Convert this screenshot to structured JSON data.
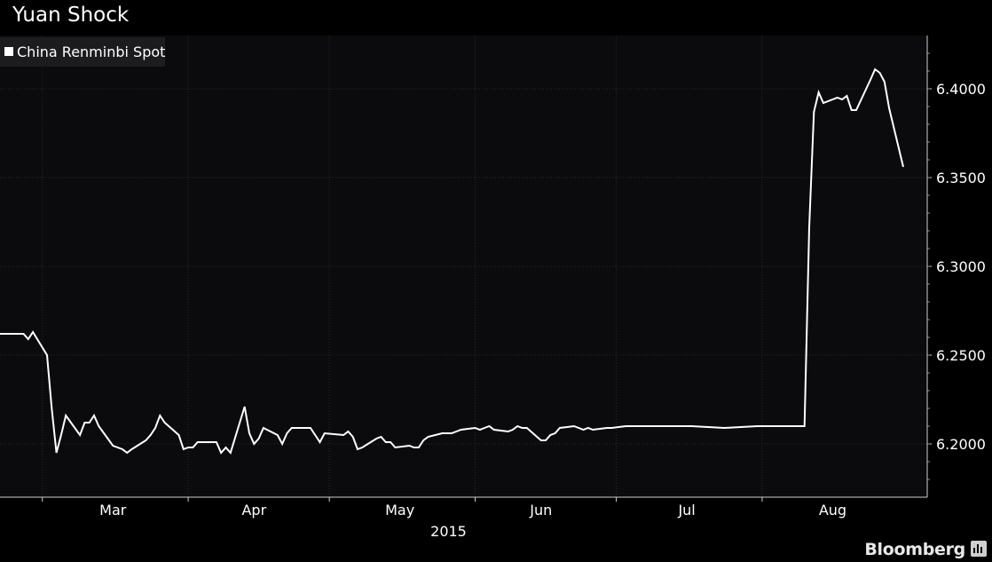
{
  "header": {
    "title": "Yuan Shock"
  },
  "branding": {
    "name": "Bloomberg",
    "icon": "bloomberg-bar-chart-icon"
  },
  "colors": {
    "background": "#000000",
    "plot_area": "#0b0b0d",
    "series": "#ffffff",
    "grid": "#2a2a2e"
  },
  "chart_data": {
    "type": "line",
    "title": "Yuan Shock",
    "xlabel": "2015",
    "ylabel": "",
    "legend": {
      "placement": "top-left",
      "entries": [
        "China Renminbi Spot"
      ]
    },
    "grid": true,
    "y_axis_side": "right",
    "x_range": [
      "2015-02-20",
      "2015-08-31"
    ],
    "ylim": [
      6.17,
      6.43
    ],
    "y_ticks": [
      "6.2000",
      "6.2500",
      "6.3000",
      "6.3500",
      "6.4000"
    ],
    "x_ticks": [
      {
        "label": "Mar",
        "date": "2015-03-01"
      },
      {
        "label": "Apr",
        "date": "2015-04-01"
      },
      {
        "label": "May",
        "date": "2015-05-01"
      },
      {
        "label": "Jun",
        "date": "2015-06-01"
      },
      {
        "label": "Jul",
        "date": "2015-07-01"
      },
      {
        "label": "Aug",
        "date": "2015-08-01"
      }
    ],
    "series": [
      {
        "name": "China Renminbi Spot",
        "points": [
          [
            "2015-02-20",
            6.262
          ],
          [
            "2015-02-23",
            6.262
          ],
          [
            "2015-02-24",
            6.262
          ],
          [
            "2015-02-25",
            6.262
          ],
          [
            "2015-02-26",
            6.259
          ],
          [
            "2015-02-27",
            6.263
          ],
          [
            "2015-03-02",
            6.25
          ],
          [
            "2015-03-03",
            6.22
          ],
          [
            "2015-03-04",
            6.195
          ],
          [
            "2015-03-05",
            6.205
          ],
          [
            "2015-03-06",
            6.216
          ],
          [
            "2015-03-09",
            6.205
          ],
          [
            "2015-03-10",
            6.212
          ],
          [
            "2015-03-11",
            6.212
          ],
          [
            "2015-03-12",
            6.216
          ],
          [
            "2015-03-13",
            6.21
          ],
          [
            "2015-03-16",
            6.199
          ],
          [
            "2015-03-17",
            6.198
          ],
          [
            "2015-03-18",
            6.197
          ],
          [
            "2015-03-19",
            6.195
          ],
          [
            "2015-03-20",
            6.197
          ],
          [
            "2015-03-23",
            6.202
          ],
          [
            "2015-03-24",
            6.205
          ],
          [
            "2015-03-25",
            6.209
          ],
          [
            "2015-03-26",
            6.216
          ],
          [
            "2015-03-27",
            6.212
          ],
          [
            "2015-03-30",
            6.205
          ],
          [
            "2015-03-31",
            6.197
          ],
          [
            "2015-04-01",
            6.198
          ],
          [
            "2015-04-02",
            6.198
          ],
          [
            "2015-04-03",
            6.201
          ],
          [
            "2015-04-07",
            6.201
          ],
          [
            "2015-04-08",
            6.195
          ],
          [
            "2015-04-09",
            6.198
          ],
          [
            "2015-04-10",
            6.195
          ],
          [
            "2015-04-13",
            6.221
          ],
          [
            "2015-04-14",
            6.206
          ],
          [
            "2015-04-15",
            6.2
          ],
          [
            "2015-04-16",
            6.203
          ],
          [
            "2015-04-17",
            6.209
          ],
          [
            "2015-04-20",
            6.205
          ],
          [
            "2015-04-21",
            6.2
          ],
          [
            "2015-04-22",
            6.206
          ],
          [
            "2015-04-23",
            6.209
          ],
          [
            "2015-04-24",
            6.209
          ],
          [
            "2015-04-27",
            6.209
          ],
          [
            "2015-04-28",
            6.205
          ],
          [
            "2015-04-29",
            6.201
          ],
          [
            "2015-04-30",
            6.206
          ],
          [
            "2015-05-04",
            6.205
          ],
          [
            "2015-05-05",
            6.207
          ],
          [
            "2015-05-06",
            6.204
          ],
          [
            "2015-05-07",
            6.197
          ],
          [
            "2015-05-08",
            6.198
          ],
          [
            "2015-05-11",
            6.203
          ],
          [
            "2015-05-12",
            6.204
          ],
          [
            "2015-05-13",
            6.201
          ],
          [
            "2015-05-14",
            6.201
          ],
          [
            "2015-05-15",
            6.198
          ],
          [
            "2015-05-18",
            6.199
          ],
          [
            "2015-05-19",
            6.198
          ],
          [
            "2015-05-20",
            6.198
          ],
          [
            "2015-05-21",
            6.202
          ],
          [
            "2015-05-22",
            6.204
          ],
          [
            "2015-05-25",
            6.206
          ],
          [
            "2015-05-26",
            6.206
          ],
          [
            "2015-05-27",
            6.206
          ],
          [
            "2015-05-28",
            6.207
          ],
          [
            "2015-05-29",
            6.208
          ],
          [
            "2015-06-01",
            6.209
          ],
          [
            "2015-06-02",
            6.208
          ],
          [
            "2015-06-03",
            6.209
          ],
          [
            "2015-06-04",
            6.21
          ],
          [
            "2015-06-05",
            6.208
          ],
          [
            "2015-06-08",
            6.207
          ],
          [
            "2015-06-09",
            6.208
          ],
          [
            "2015-06-10",
            6.21
          ],
          [
            "2015-06-11",
            6.209
          ],
          [
            "2015-06-12",
            6.209
          ],
          [
            "2015-06-15",
            6.202
          ],
          [
            "2015-06-16",
            6.202
          ],
          [
            "2015-06-17",
            6.205
          ],
          [
            "2015-06-18",
            6.206
          ],
          [
            "2015-06-19",
            6.209
          ],
          [
            "2015-06-22",
            6.21
          ],
          [
            "2015-06-23",
            6.209
          ],
          [
            "2015-06-24",
            6.208
          ],
          [
            "2015-06-25",
            6.209
          ],
          [
            "2015-06-26",
            6.208
          ],
          [
            "2015-06-29",
            6.209
          ],
          [
            "2015-06-30",
            6.209
          ],
          [
            "2015-07-03",
            6.21
          ],
          [
            "2015-07-10",
            6.21
          ],
          [
            "2015-07-17",
            6.21
          ],
          [
            "2015-07-24",
            6.209
          ],
          [
            "2015-07-31",
            6.21
          ],
          [
            "2015-08-07",
            6.21
          ],
          [
            "2015-08-10",
            6.21
          ],
          [
            "2015-08-11",
            6.322
          ],
          [
            "2015-08-12",
            6.387
          ],
          [
            "2015-08-13",
            6.398
          ],
          [
            "2015-08-14",
            6.392
          ],
          [
            "2015-08-17",
            6.395
          ],
          [
            "2015-08-18",
            6.394
          ],
          [
            "2015-08-19",
            6.396
          ],
          [
            "2015-08-20",
            6.388
          ],
          [
            "2015-08-21",
            6.388
          ],
          [
            "2015-08-24",
            6.405
          ],
          [
            "2015-08-25",
            6.411
          ],
          [
            "2015-08-26",
            6.409
          ],
          [
            "2015-08-27",
            6.404
          ],
          [
            "2015-08-28",
            6.389
          ],
          [
            "2015-08-31",
            6.356
          ]
        ]
      }
    ]
  }
}
